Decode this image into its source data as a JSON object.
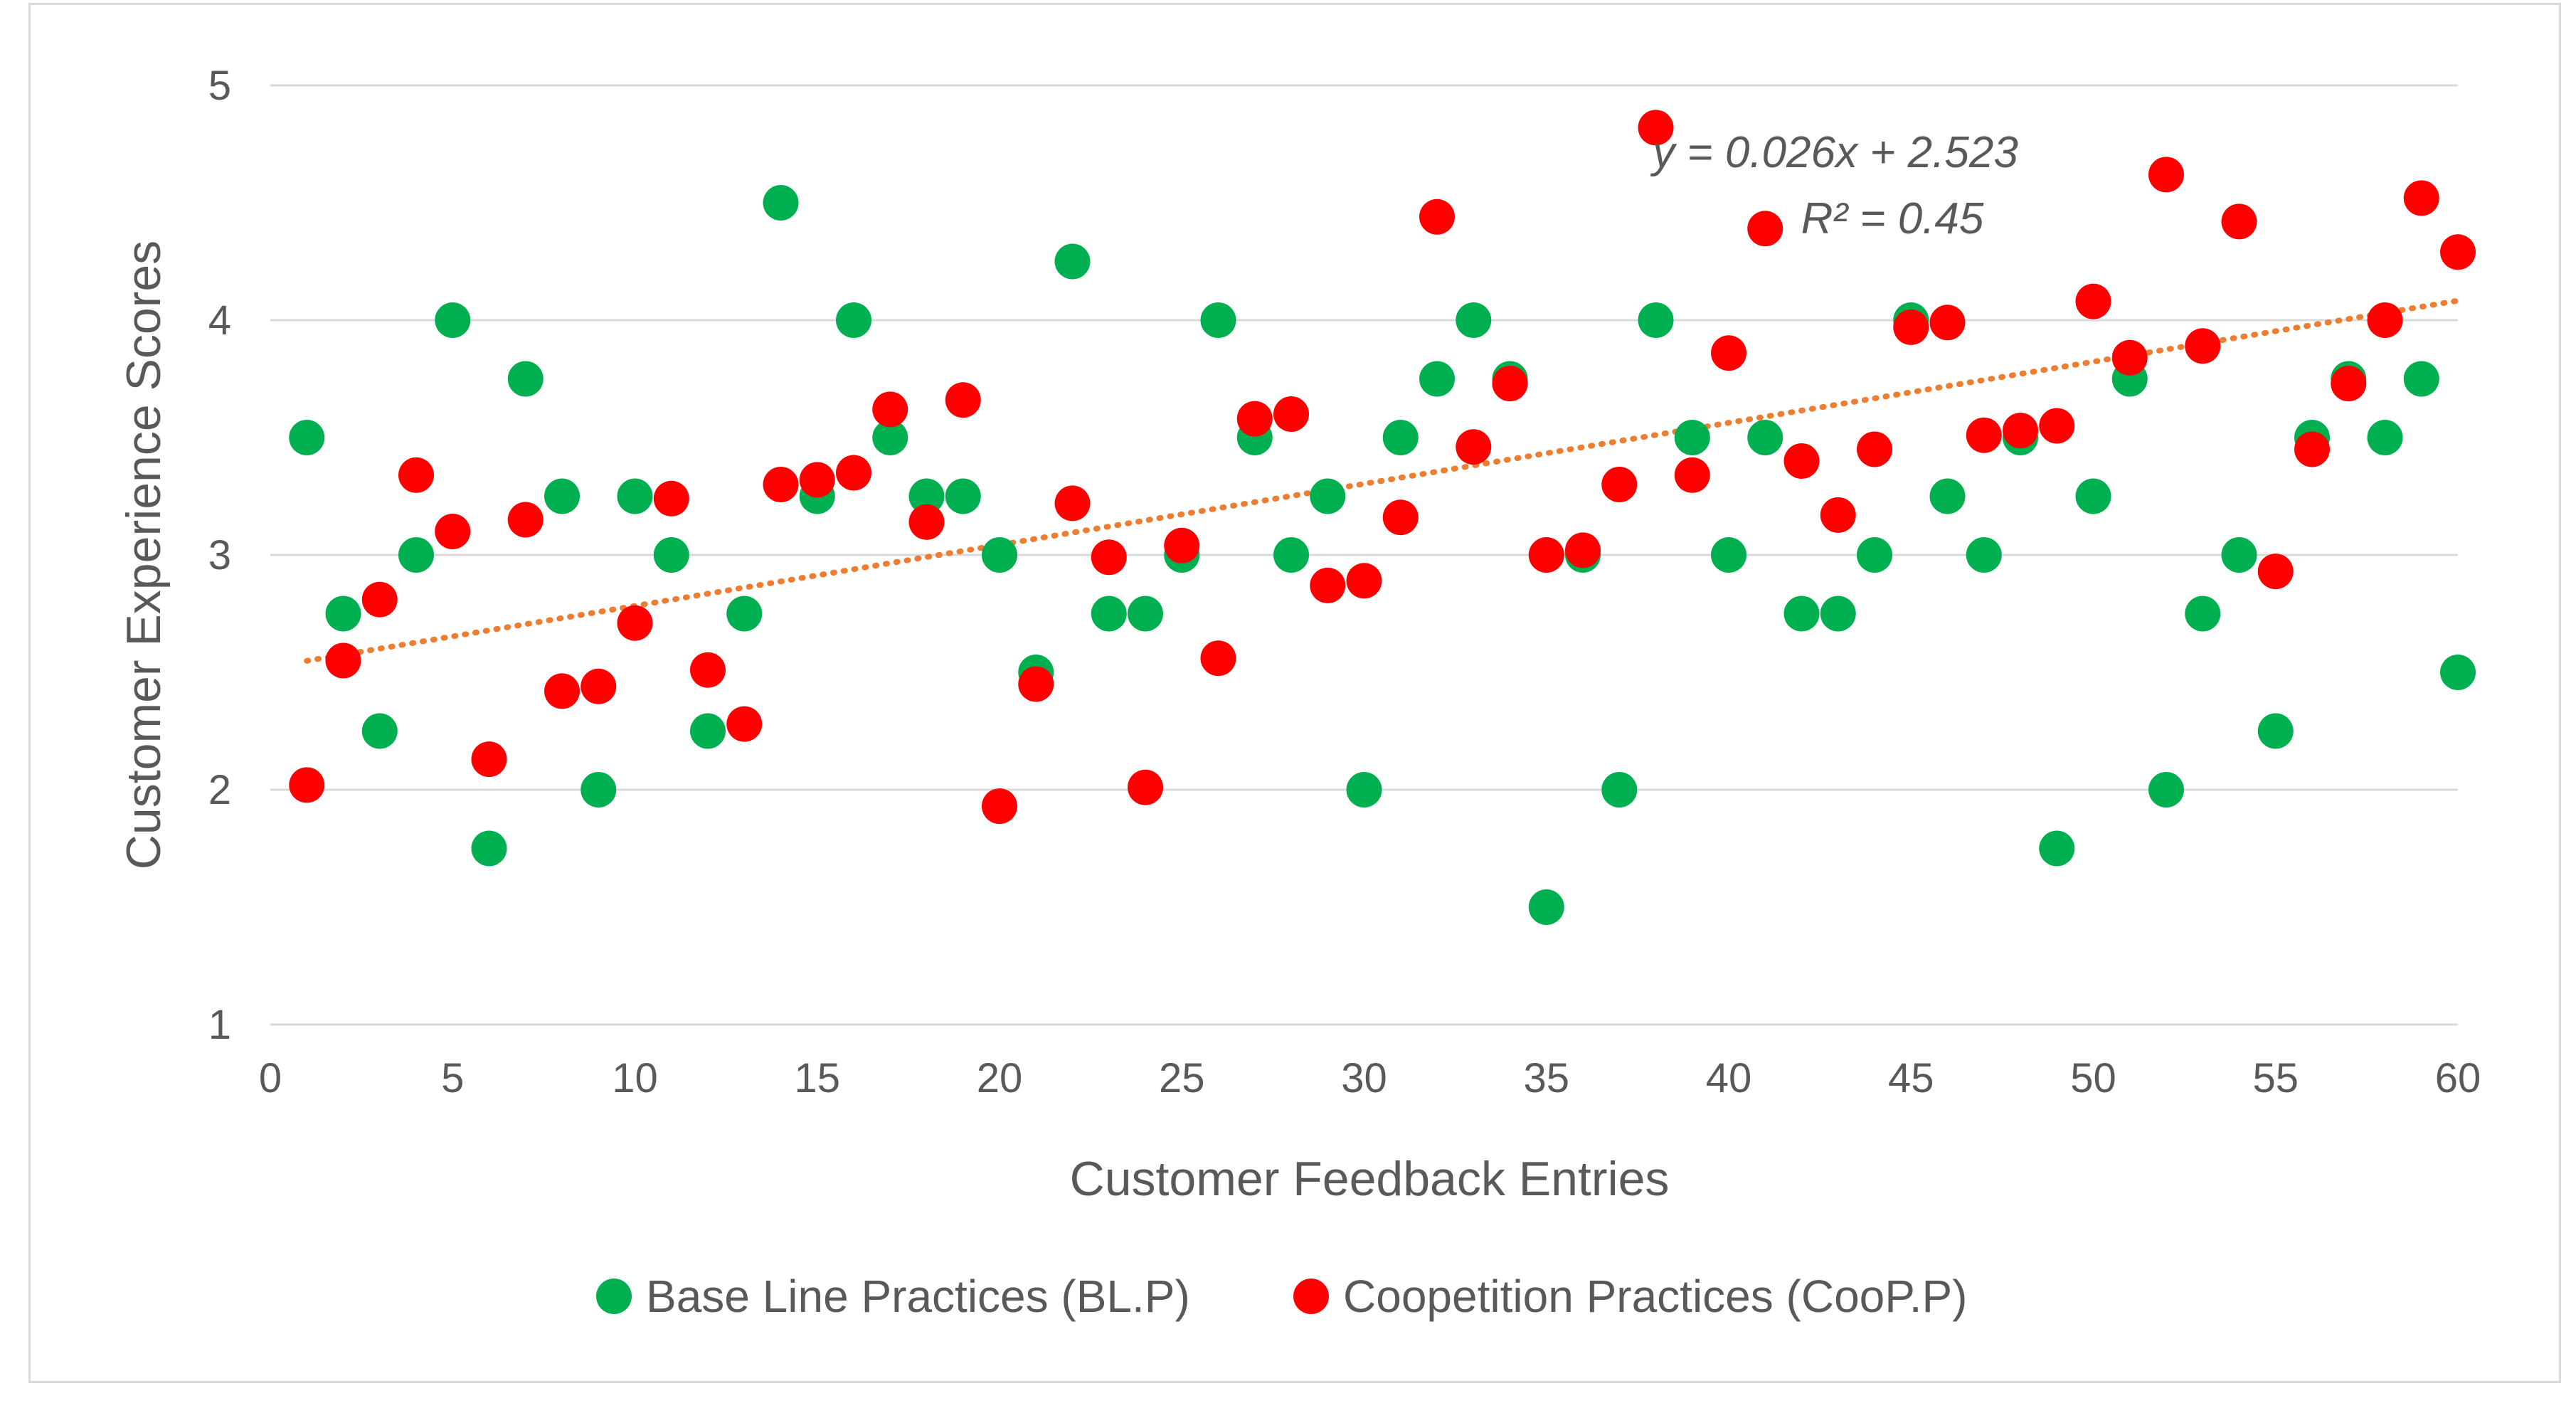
{
  "chart_data": {
    "type": "scatter",
    "title": "",
    "xlabel": "Customer Feedback Entries",
    "ylabel": "Customer Experience Scores",
    "xlim": [
      0,
      60
    ],
    "ylim": [
      1,
      5
    ],
    "x_ticks": [
      0,
      5,
      10,
      15,
      20,
      25,
      30,
      35,
      40,
      45,
      50,
      55,
      60
    ],
    "y_ticks": [
      1,
      2,
      3,
      4,
      5
    ],
    "grid": "horizontal",
    "legend_position": "bottom",
    "series": [
      {
        "name": "Base Line Practices (BL.P)",
        "color": "#00b050",
        "x": [
          1,
          2,
          3,
          4,
          5,
          6,
          7,
          8,
          9,
          10,
          11,
          12,
          13,
          14,
          15,
          16,
          17,
          18,
          19,
          20,
          21,
          22,
          23,
          24,
          25,
          26,
          27,
          28,
          29,
          30,
          31,
          32,
          33,
          34,
          35,
          36,
          37,
          38,
          39,
          40,
          41,
          42,
          43,
          44,
          45,
          46,
          47,
          48,
          49,
          50,
          51,
          52,
          53,
          54,
          55,
          56,
          57,
          58,
          59,
          60
        ],
        "y": [
          3.5,
          2.75,
          2.25,
          3,
          4,
          1.75,
          3.75,
          3.25,
          2,
          3.25,
          3,
          2.25,
          2.75,
          4.5,
          3.25,
          4,
          3.5,
          3.25,
          3.25,
          3,
          2.5,
          4.25,
          2.75,
          2.75,
          3,
          4,
          3.5,
          3,
          3.25,
          2,
          3.5,
          3.75,
          4,
          3.75,
          1.5,
          3,
          2,
          4,
          3.5,
          3,
          3.5,
          2.75,
          2.75,
          3,
          4,
          3.25,
          3,
          3.5,
          1.75,
          3.25,
          3.75,
          2,
          2.75,
          3,
          2.25,
          3.5,
          3.75,
          3.5,
          3.75,
          2.5
        ]
      },
      {
        "name": "Coopetition Practices (CooP.P)",
        "color": "#ff0000",
        "x": [
          1,
          2,
          3,
          4,
          5,
          6,
          7,
          8,
          9,
          10,
          11,
          12,
          13,
          14,
          15,
          16,
          17,
          18,
          19,
          20,
          21,
          22,
          23,
          24,
          25,
          26,
          27,
          28,
          29,
          30,
          31,
          32,
          33,
          34,
          35,
          36,
          37,
          38,
          39,
          40,
          41,
          42,
          43,
          44,
          45,
          46,
          47,
          48,
          49,
          50,
          51,
          52,
          53,
          54,
          55,
          56,
          57,
          58,
          59,
          60
        ],
        "y": [
          2.02,
          2.55,
          2.81,
          3.34,
          3.1,
          2.13,
          3.15,
          2.42,
          2.44,
          2.71,
          3.24,
          2.51,
          2.28,
          3.3,
          3.32,
          3.35,
          3.62,
          3.14,
          3.66,
          1.93,
          2.45,
          3.22,
          2.99,
          2.01,
          3.04,
          2.56,
          3.58,
          3.6,
          2.87,
          2.89,
          3.16,
          4.44,
          3.46,
          3.73,
          3,
          3.02,
          3.3,
          4.82,
          3.34,
          3.86,
          4.39,
          3.4,
          3.17,
          3.45,
          3.97,
          3.99,
          3.51,
          3.53,
          3.55,
          4.08,
          3.84,
          4.62,
          3.89,
          4.42,
          2.93,
          3.45,
          3.73,
          4,
          4.52,
          4.29
        ]
      }
    ],
    "trendline": {
      "series": "Coopetition Practices (CooP.P)",
      "type": "linear",
      "style": "dotted",
      "color": "#ed7d31",
      "slope": 0.026,
      "intercept": 2.523,
      "x_range": [
        1,
        60
      ],
      "equation_label": "y = 0.026x + 2.523",
      "r2_label": "R² = 0.45"
    }
  }
}
